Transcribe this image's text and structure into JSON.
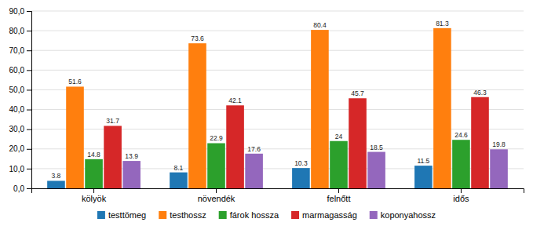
{
  "chart_data": {
    "type": "bar",
    "categories": [
      "kölyök",
      "növendék",
      "felnőtt",
      "idős"
    ],
    "series": [
      {
        "name": "testtömeg",
        "values": [
          3.8,
          8.1,
          10.3,
          11.5
        ]
      },
      {
        "name": "testhossz",
        "values": [
          51.6,
          73.6,
          80.4,
          81.3
        ]
      },
      {
        "name": "fárok hossza",
        "values": [
          14.8,
          22.9,
          24.0,
          24.6
        ]
      },
      {
        "name": "marmagasság",
        "values": [
          31.7,
          42.1,
          45.7,
          46.3
        ]
      },
      {
        "name": "koponyahossz",
        "values": [
          13.9,
          17.6,
          18.5,
          19.8
        ]
      }
    ],
    "ylim": [
      0,
      90
    ],
    "yticks": [
      {
        "value": 0,
        "label": "0,0"
      },
      {
        "value": 10,
        "label": "10,0"
      },
      {
        "value": 20,
        "label": "20,0"
      },
      {
        "value": 30,
        "label": "30,0"
      },
      {
        "value": 40,
        "label": "40,0"
      },
      {
        "value": 50,
        "label": "50,0"
      },
      {
        "value": 60,
        "label": "60,0"
      },
      {
        "value": 70,
        "label": "70,0"
      },
      {
        "value": 80,
        "label": "80,0"
      },
      {
        "value": 90,
        "label": "90,0"
      }
    ],
    "grid": true,
    "legend": "bottom",
    "data_labels": true
  }
}
